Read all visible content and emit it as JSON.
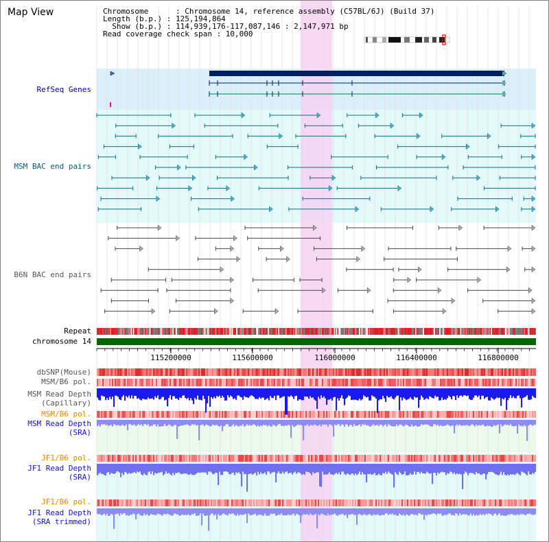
{
  "page": {
    "title": "Map View"
  },
  "info": {
    "line1": "Chromosome      : Chromosome 14, reference assembly (C57BL/6J) (Build 37)",
    "line2": "Length (b.p.) : 125,194,864",
    "line3": "  Show (b.p.) : 114,939,176-117,087,146 : 2,147,971 bp",
    "line4": "Read coverage check span : 10,000"
  },
  "tracks": {
    "refseq": "RefSeq Genes",
    "msm_bac": "MSM BAC end pairs",
    "b6n_bac": "B6N BAC end pairs",
    "repeat": "Repeat",
    "chromosome": "chromosome 14",
    "dbsnp": "dbSNP(Mouse)",
    "msm_b6_pol": "MSM/B6 pol.",
    "msm_read_depth_cap_1": "MSM Read Depth",
    "msm_read_depth_cap_2": "(Capillary)",
    "msm_b6_pol_2": "MSM/B6 pol.",
    "msm_read_depth_sra_1": "MSM Read Depth",
    "msm_read_depth_sra_2": "(SRA)",
    "jf1_b6_pol": "JF1/B6 pol.",
    "jf1_read_depth_sra_1": "JF1 Read Depth",
    "jf1_read_depth_sra_2": "(SRA)",
    "jf1_b6_pol_2": "JF1/B6 pol.",
    "jf1_read_depth_trim_1": "JF1 Read Depth",
    "jf1_read_depth_trim_2": "(SRA trimmed)"
  },
  "axis": {
    "ticks": [
      "115200000",
      "115600000",
      "116000000",
      "116400000",
      "116800000"
    ]
  },
  "colors": {
    "refseq_bg": "#d9f0fb",
    "bac_bg": "#e2fafa",
    "highlight": "#f6d2f2",
    "chromosome": "#006600",
    "navy": "#00008b",
    "snp": "#e23b3b",
    "depth": "#1a1aee",
    "depth_light": "#7777ee"
  }
}
